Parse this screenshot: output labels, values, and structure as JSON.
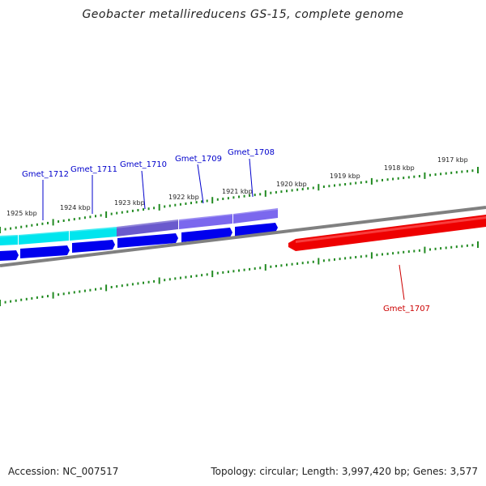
{
  "title": "Geobacter metallireducens GS-15, complete genome",
  "footer": {
    "accession": "Accession: NC_007517",
    "summary": "Topology: circular; Length: 3,997,420 bp; Genes: 3,577"
  },
  "kbp_labels": [
    "1925 kbp",
    "1924 kbp",
    "1923 kbp",
    "1922 kbp",
    "1921 kbp",
    "1920 kbp",
    "1919 kbp",
    "1918 kbp",
    "1917 kbp"
  ],
  "genes": [
    {
      "name": "Gmet_1712",
      "color": "#0000cc"
    },
    {
      "name": "Gmet_1711",
      "color": "#0000cc"
    },
    {
      "name": "Gmet_1710",
      "color": "#0000cc"
    },
    {
      "name": "Gmet_1709",
      "color": "#0000cc"
    },
    {
      "name": "Gmet_1708",
      "color": "#0000cc"
    },
    {
      "name": "Gmet_1707",
      "color": "#cc0000"
    }
  ],
  "colors": {
    "tick": "#228b22",
    "backbone": "#808080",
    "cds_forward": "#0000ee",
    "cds_reverse": "#ee0000",
    "cog_cyan": "#00e5ee",
    "cog_purple": "#6a5acd"
  }
}
